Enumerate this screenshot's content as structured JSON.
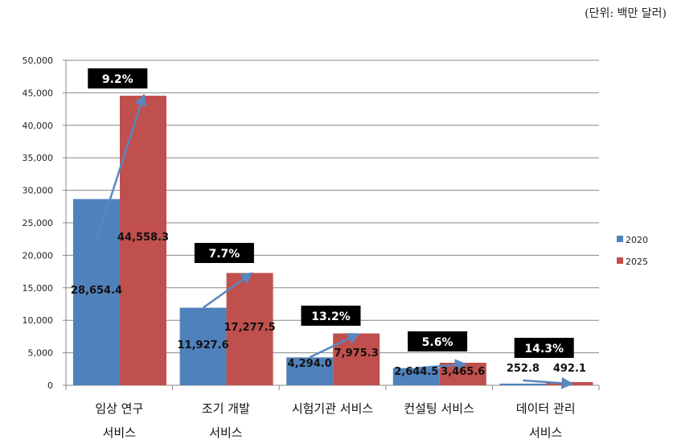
{
  "unit_label": "(단위: 백만 달러)",
  "chart_data": {
    "type": "bar",
    "categories": [
      [
        "임상 연구",
        "서비스"
      ],
      [
        "조기 개발",
        "서비스"
      ],
      [
        "시험기관 서비스"
      ],
      [
        "컨설팅 서비스"
      ],
      [
        "데이터 관리",
        "서비스"
      ]
    ],
    "series": [
      {
        "name": "2020",
        "color": "#4f81bd",
        "values": [
          28654.4,
          11927.6,
          4294.0,
          2644.5,
          252.8
        ],
        "labels": [
          "28,654.4",
          "11,927.6",
          "4,294.0",
          "2,644.5",
          "252.8"
        ]
      },
      {
        "name": "2025",
        "color": "#c0504d",
        "values": [
          44558.3,
          17277.5,
          7975.3,
          3465.6,
          492.1
        ],
        "labels": [
          "44,558.3",
          "17,277.5",
          "7,975.3",
          "3,465.6",
          "492.1"
        ]
      }
    ],
    "growth_labels": [
      "9.2%",
      "7.7%",
      "13.2%",
      "5.6%",
      "14.3%"
    ],
    "ylim": [
      0,
      50000
    ],
    "yticks": [
      "0",
      "5,000",
      "10,000",
      "15,000",
      "20,000",
      "25,000",
      "30,000",
      "35,000",
      "40,000",
      "45,000",
      "50,000"
    ],
    "grid": true,
    "legend": "right",
    "arrow_color": "#5a86c0"
  }
}
